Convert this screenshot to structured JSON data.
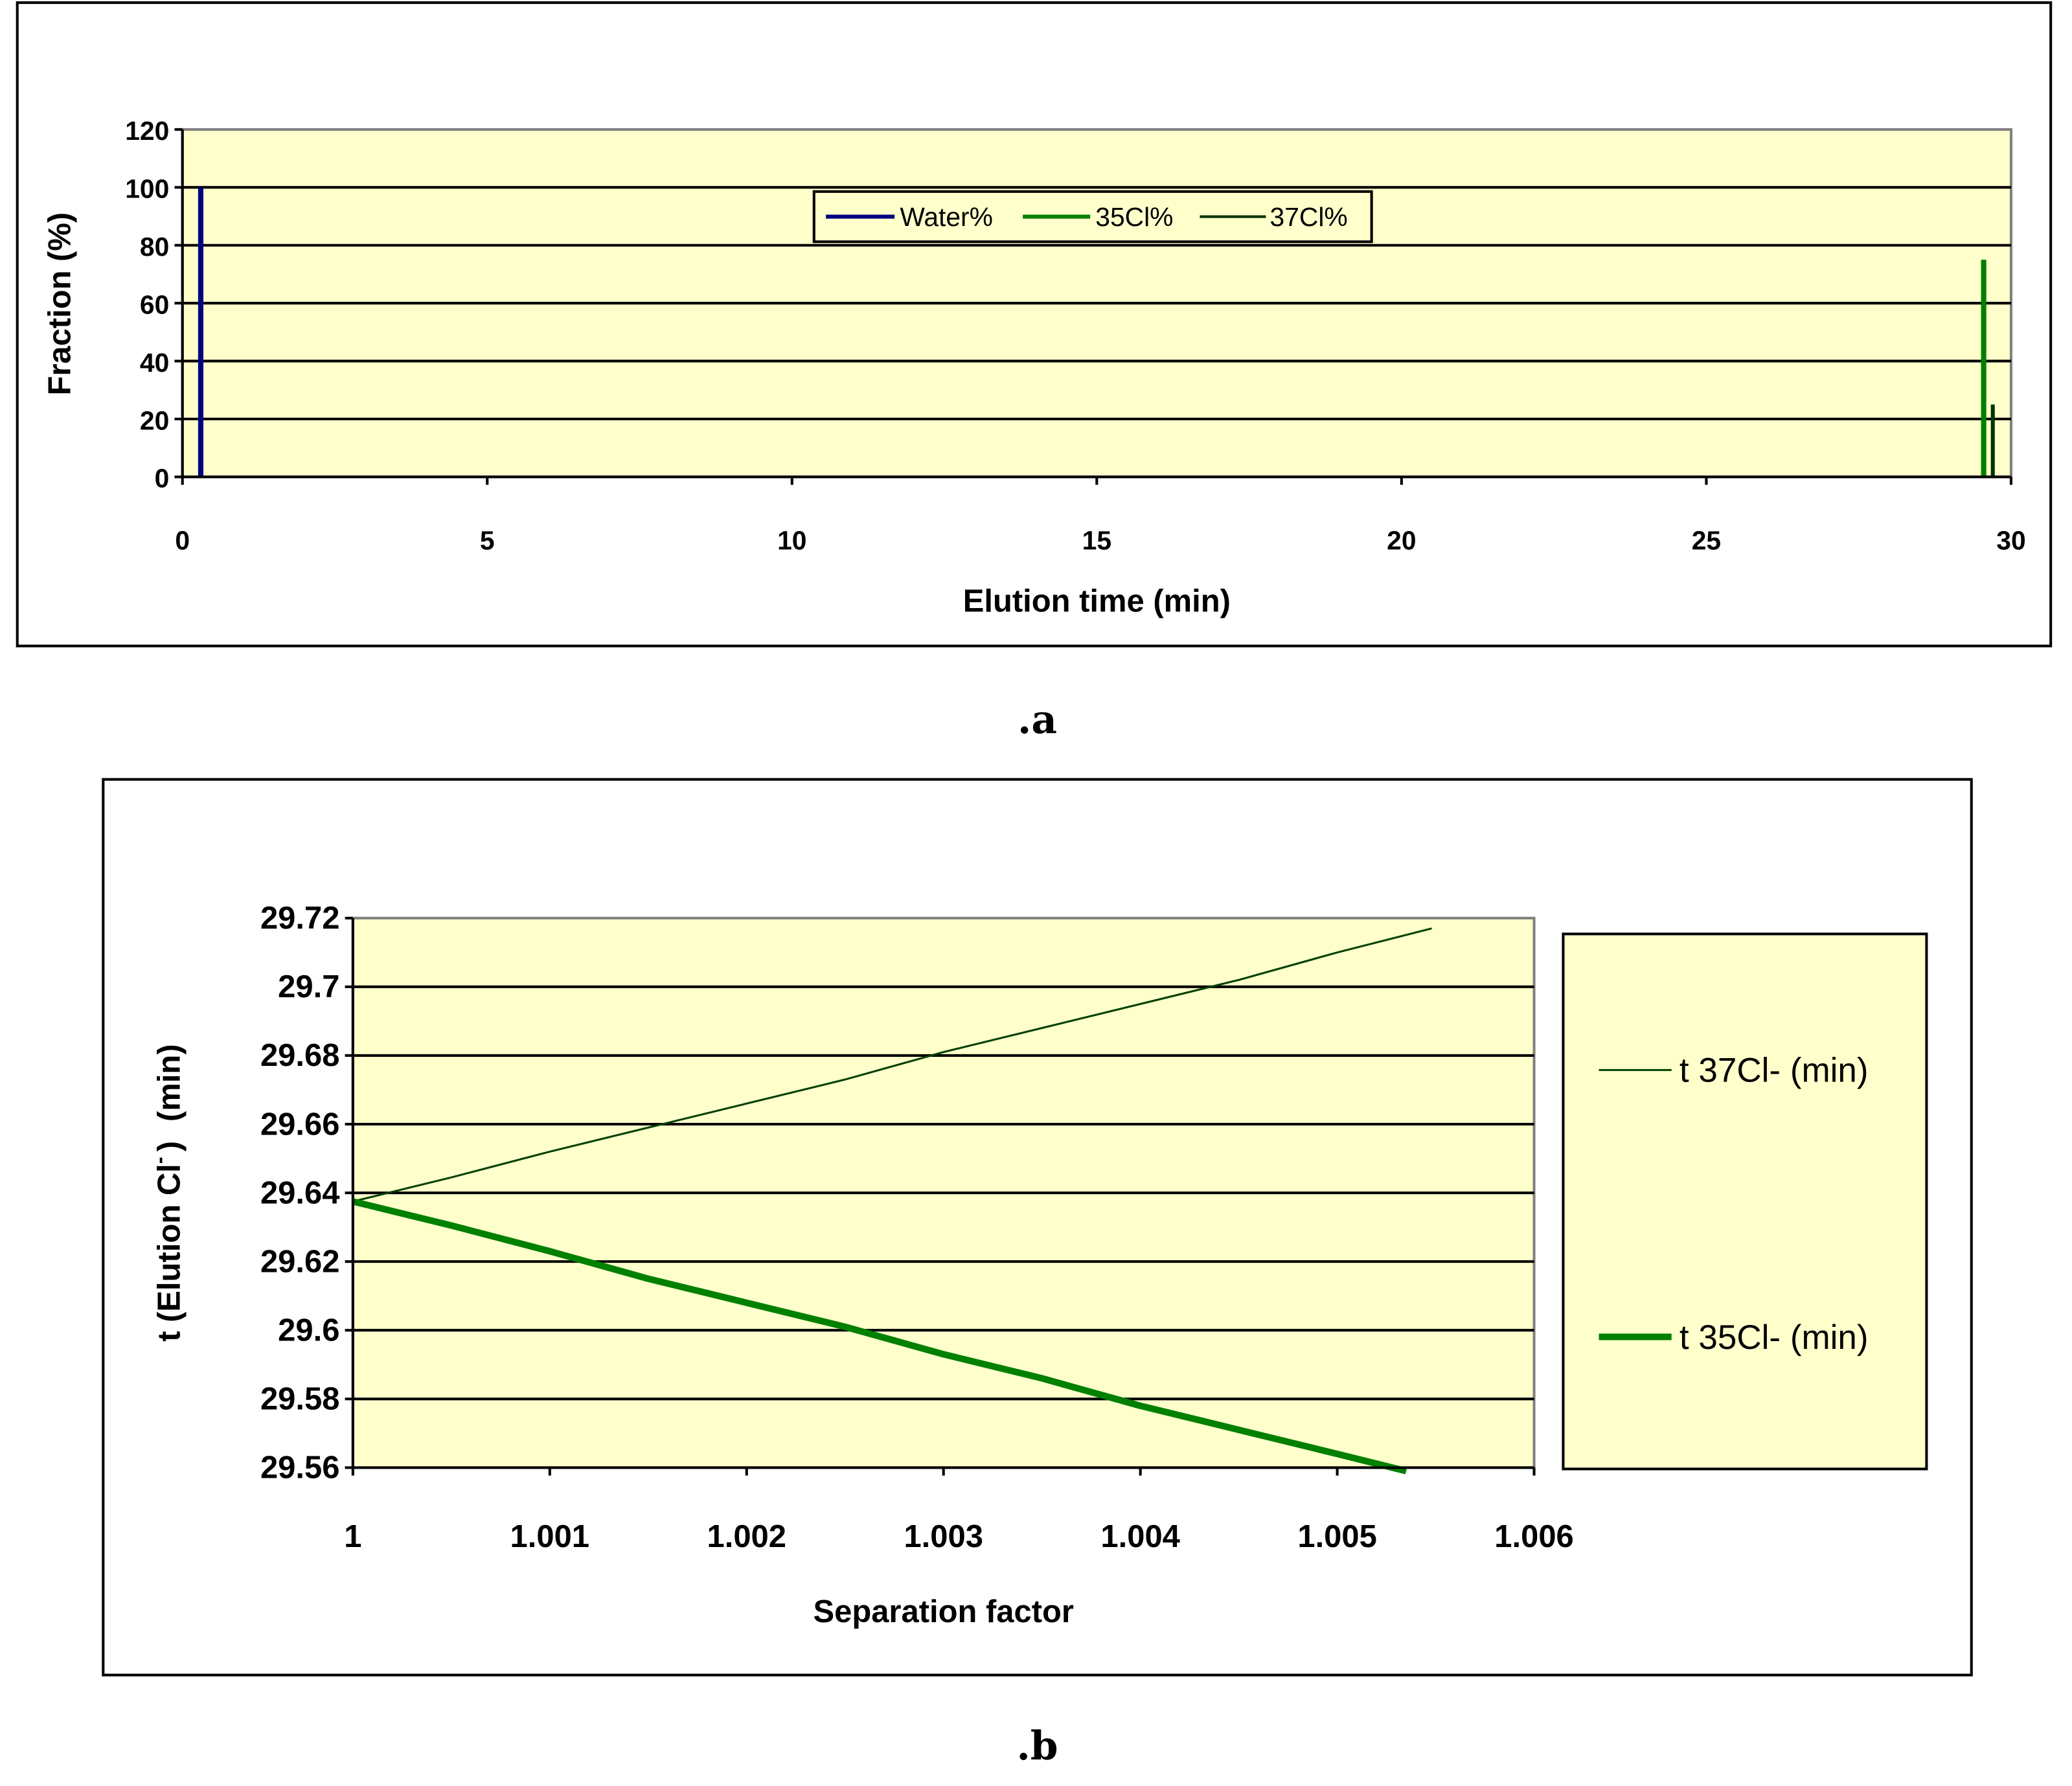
{
  "chart_data": [
    {
      "type": "bar",
      "title": "",
      "xlabel": "Elution time (min)",
      "ylabel": "Fraction (%)",
      "xlim": [
        0,
        30
      ],
      "ylim": [
        0,
        120
      ],
      "xticks": [
        "0",
        "5",
        "10",
        "15",
        "20",
        "25",
        "30"
      ],
      "yticks": [
        "0",
        "20",
        "40",
        "60",
        "80",
        "100",
        "120"
      ],
      "grid": true,
      "legend": "top-center",
      "series": [
        {
          "name": "Water%",
          "color": "#000080",
          "x": [
            0.3
          ],
          "values": [
            100
          ]
        },
        {
          "name": "35Cl%",
          "color": "#008000",
          "x": [
            29.55
          ],
          "values": [
            75
          ]
        },
        {
          "name": "37Cl%",
          "color": "#003300",
          "x": [
            29.7
          ],
          "values": [
            25
          ]
        }
      ],
      "caption": ".a"
    },
    {
      "type": "line",
      "title": "",
      "xlabel": "Separation factor",
      "ylabel": "t (Elution Cl",
      "ylabel_sup": "-",
      "ylabel_unit": "(min)",
      "xlim": [
        1,
        1.006
      ],
      "ylim": [
        29.56,
        29.72
      ],
      "xticks": [
        "1",
        "1.001",
        "1.002",
        "1.003",
        "1.004",
        "1.005",
        "1.006"
      ],
      "yticks": [
        "29.56",
        "29.58",
        "29.6",
        "29.62",
        "29.64",
        "29.66",
        "29.68",
        "29.7",
        "29.72"
      ],
      "grid": true,
      "legend": "right",
      "series": [
        {
          "name": "t 37Cl- (min)",
          "color": "#004000",
          "x": [
            1,
            1.0005,
            1.001,
            1.0015,
            1.002,
            1.0025,
            1.003,
            1.0035,
            1.004,
            1.0045,
            1.005,
            1.00548
          ],
          "values": [
            29.6375,
            29.6445,
            29.652,
            29.659,
            29.666,
            29.673,
            29.681,
            29.688,
            29.695,
            29.702,
            29.71,
            29.717
          ]
        },
        {
          "name": "t 35Cl- (min)",
          "color": "#008000",
          "x": [
            1,
            1.0005,
            1.001,
            1.0015,
            1.002,
            1.0025,
            1.003,
            1.0035,
            1.004,
            1.0045,
            1.005,
            1.00535
          ],
          "values": [
            29.6375,
            29.6305,
            29.623,
            29.615,
            29.608,
            29.601,
            29.593,
            29.586,
            29.578,
            29.571,
            29.564,
            29.559
          ]
        }
      ],
      "caption": ".b"
    }
  ]
}
